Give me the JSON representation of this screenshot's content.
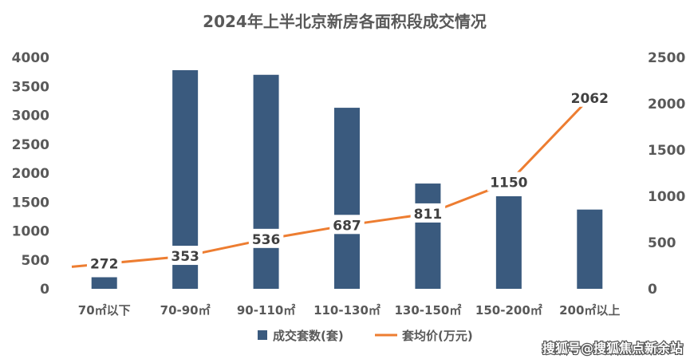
{
  "chart_data": {
    "type": "bar",
    "title": "2024年上半北京新房各面积段成交情况",
    "categories": [
      "70㎡以下",
      "70-90㎡",
      "90-110㎡",
      "110-130㎡",
      "130-150㎡",
      "150-200㎡",
      "200㎡以上"
    ],
    "series": [
      {
        "name": "成交套数(套)",
        "type": "bar",
        "axis": "left",
        "color": "#3A5A7E",
        "values": [
          200,
          3780,
          3700,
          3130,
          1820,
          1600,
          1370
        ]
      },
      {
        "name": "套均价(万元)",
        "type": "line",
        "axis": "right",
        "color": "#ED7D31",
        "values": [
          272,
          353,
          536,
          687,
          811,
          1150,
          2062
        ],
        "labels": [
          "272",
          "353",
          "536",
          "687",
          "811",
          "1150",
          "2062"
        ]
      }
    ],
    "y_left": {
      "min": 0,
      "max": 4000,
      "ticks": [
        "0",
        "500",
        "1000",
        "1500",
        "2000",
        "2500",
        "3000",
        "3500",
        "4000"
      ]
    },
    "y_right": {
      "min": 0,
      "max": 2500,
      "ticks": [
        "0",
        "500",
        "1000",
        "1500",
        "2000",
        "2500"
      ]
    },
    "legend_position": "bottom",
    "grid": false
  },
  "watermark": "搜狐号@搜狐焦点新余站"
}
